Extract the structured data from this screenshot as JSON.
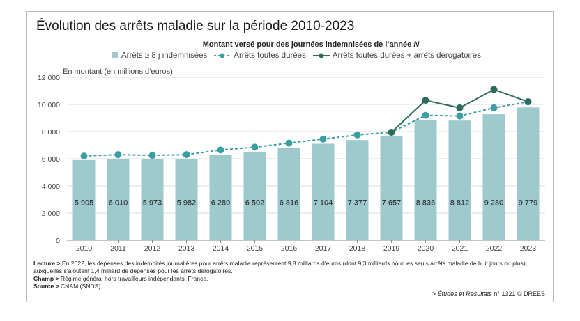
{
  "chart_data": {
    "type": "bar",
    "title": "Évolution des arrêts maladie sur la période 2010-2023",
    "subtitle_plain": "Montant versé pour des journées indemnisées de l’année ",
    "subtitle_italic": "N",
    "ylabel": "En montant (en millions d’euros)",
    "ylim": [
      0,
      12000
    ],
    "yticks": [
      0,
      2000,
      4000,
      6000,
      8000,
      10000,
      12000
    ],
    "ytick_labels": [
      "0",
      "2 000",
      "4 000",
      "6 000",
      "8 000",
      "10 000",
      "12 000"
    ],
    "grid": true,
    "legend_placement": "top",
    "categories": [
      "2010",
      "2011",
      "2012",
      "2013",
      "2014",
      "2015",
      "2016",
      "2017",
      "2018",
      "2019",
      "2020",
      "2021",
      "2022",
      "2023"
    ],
    "series": [
      {
        "name": "Arrêts ≥ 8 j indemnisées",
        "type": "bar",
        "color": "#9ecacd",
        "values": [
          5905,
          6010,
          5973,
          5982,
          6280,
          6502,
          6816,
          7104,
          7377,
          7657,
          8836,
          8812,
          9280,
          9779
        ],
        "labels": [
          "5 905",
          "6 010",
          "5 973",
          "5 982",
          "6 280",
          "6 502",
          "6 816",
          "7 104",
          "7 377",
          "7 657",
          "8 836",
          "8 812",
          "9 280",
          "9 779"
        ]
      },
      {
        "name": "Arrêts toutes durées",
        "type": "line-dashed",
        "color": "#3a9fa3",
        "values": [
          6200,
          6300,
          6250,
          6300,
          6650,
          6850,
          7150,
          7450,
          7750,
          7950,
          9200,
          9150,
          9750,
          10200
        ]
      },
      {
        "name": "Arrêts toutes durées + arrêts dérogatoires",
        "type": "line",
        "color": "#2e6b5e",
        "values": [
          null,
          null,
          null,
          null,
          null,
          null,
          null,
          null,
          null,
          7950,
          10300,
          9750,
          11100,
          10200
        ]
      }
    ]
  },
  "notes": {
    "lecture_label": "Lecture >",
    "lecture": " En 2022, les dépenses des indemnités journalières pour arrêts maladie représentent 9,8 milliards d’euros (dont 9,3 milliards pour les seuls arrêts maladie de huit jours ou plus), auxquelles s’ajoutent 1,4 milliard de dépenses pour les arrêts dérogatoires.",
    "champ_label": "Champ >",
    "champ": " Régime général hors travailleurs indépendants, France.",
    "source_label": "Source >",
    "source": " CNAM (SNDS).",
    "credit_prefix": "> ",
    "credit_italic": "Études et Résultats",
    "credit_suffix": " n° 1321 © DREES"
  }
}
